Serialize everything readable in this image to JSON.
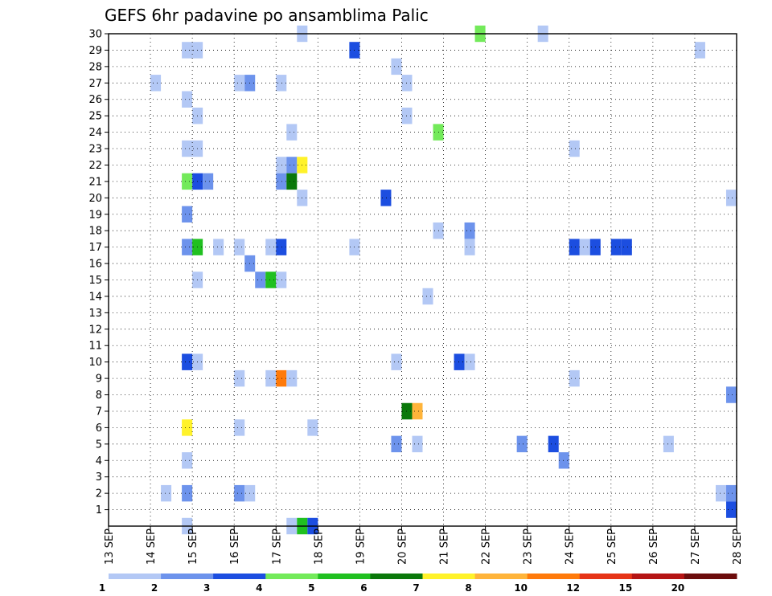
{
  "chart_data": {
    "type": "heatmap",
    "title": "GEFS 6hr padavine po ansamblima Palic",
    "x_tick_labels": [
      "13 SEP",
      "14 SEP",
      "15 SEP",
      "16 SEP",
      "17 SEP",
      "18 SEP",
      "19 SEP",
      "20 SEP",
      "21 SEP",
      "22 SEP",
      "23 SEP",
      "24 SEP",
      "25 SEP",
      "26 SEP",
      "27 SEP",
      "28 SEP"
    ],
    "x_range_steps": [
      0,
      60
    ],
    "y_tick_labels": [
      "1",
      "2",
      "3",
      "4",
      "5",
      "6",
      "7",
      "8",
      "9",
      "10",
      "11",
      "12",
      "13",
      "14",
      "15",
      "16",
      "17",
      "18",
      "19",
      "20",
      "21",
      "22",
      "23",
      "24",
      "25",
      "26",
      "27",
      "28",
      "29",
      "30"
    ],
    "y_range": [
      0,
      30
    ],
    "grid": true,
    "colorbar": {
      "position": "bottom",
      "labels": [
        "1",
        "2",
        "3",
        "4",
        "5",
        "6",
        "7",
        "8",
        "10",
        "12",
        "15",
        "20"
      ],
      "colors": [
        "#b3c8f5",
        "#6d93ec",
        "#1c4ee0",
        "#73ea5a",
        "#20c020",
        "#0a780a",
        "#fff22a",
        "#ffb43a",
        "#ff7a0a",
        "#e63417",
        "#b51414",
        "#6c0c0c"
      ]
    },
    "cells_note": "each cell: [member, time_step (6h steps from 13 SEP 00z), precip class index 0..11]",
    "cells": [
      [
        30,
        18,
        0
      ],
      [
        30,
        35,
        3
      ],
      [
        30,
        41,
        0
      ],
      [
        29,
        7,
        0
      ],
      [
        29,
        8,
        0
      ],
      [
        29,
        23,
        2
      ],
      [
        29,
        56,
        0
      ],
      [
        28,
        27,
        0
      ],
      [
        27,
        4,
        0
      ],
      [
        27,
        12,
        0
      ],
      [
        27,
        13,
        1
      ],
      [
        27,
        16,
        0
      ],
      [
        27,
        28,
        0
      ],
      [
        26,
        7,
        0
      ],
      [
        25,
        8,
        0
      ],
      [
        25,
        28,
        0
      ],
      [
        24,
        17,
        0
      ],
      [
        24,
        31,
        3
      ],
      [
        23,
        7,
        0
      ],
      [
        23,
        8,
        0
      ],
      [
        23,
        44,
        0
      ],
      [
        22,
        16,
        0
      ],
      [
        22,
        17,
        1
      ],
      [
        22,
        18,
        6
      ],
      [
        21,
        7,
        3
      ],
      [
        21,
        8,
        2
      ],
      [
        21,
        9,
        1
      ],
      [
        21,
        16,
        1
      ],
      [
        21,
        17,
        5
      ],
      [
        20,
        18,
        0
      ],
      [
        20,
        26,
        2
      ],
      [
        20,
        59,
        0
      ],
      [
        19,
        7,
        1
      ],
      [
        18,
        31,
        0
      ],
      [
        18,
        34,
        1
      ],
      [
        17,
        7,
        1
      ],
      [
        17,
        8,
        4
      ],
      [
        17,
        10,
        0
      ],
      [
        17,
        12,
        0
      ],
      [
        17,
        15,
        0
      ],
      [
        17,
        16,
        2
      ],
      [
        17,
        23,
        0
      ],
      [
        17,
        34,
        0
      ],
      [
        17,
        44,
        2
      ],
      [
        17,
        45,
        0
      ],
      [
        17,
        46,
        2
      ],
      [
        17,
        48,
        2
      ],
      [
        17,
        49,
        2
      ],
      [
        16,
        13,
        1
      ],
      [
        15,
        8,
        0
      ],
      [
        15,
        14,
        1
      ],
      [
        15,
        15,
        4
      ],
      [
        15,
        16,
        0
      ],
      [
        14,
        30,
        0
      ],
      [
        10,
        7,
        2
      ],
      [
        10,
        8,
        0
      ],
      [
        10,
        27,
        0
      ],
      [
        10,
        33,
        2
      ],
      [
        10,
        34,
        0
      ],
      [
        9,
        12,
        0
      ],
      [
        9,
        15,
        0
      ],
      [
        9,
        16,
        8
      ],
      [
        9,
        17,
        0
      ],
      [
        9,
        44,
        0
      ],
      [
        8,
        59,
        1
      ],
      [
        7,
        28,
        5
      ],
      [
        7,
        29,
        7
      ],
      [
        6,
        7,
        6
      ],
      [
        6,
        12,
        0
      ],
      [
        6,
        19,
        0
      ],
      [
        5,
        27,
        1
      ],
      [
        5,
        29,
        0
      ],
      [
        5,
        39,
        1
      ],
      [
        5,
        42,
        2
      ],
      [
        5,
        53,
        0
      ],
      [
        4,
        7,
        0
      ],
      [
        4,
        43,
        1
      ],
      [
        2,
        5,
        0
      ],
      [
        2,
        7,
        1
      ],
      [
        2,
        12,
        1
      ],
      [
        2,
        13,
        0
      ],
      [
        2,
        59,
        1
      ],
      [
        2,
        58,
        0
      ],
      [
        1,
        59,
        2
      ],
      [
        0,
        7,
        0
      ],
      [
        0,
        17,
        0
      ],
      [
        0,
        18,
        4
      ],
      [
        0,
        19,
        2
      ]
    ]
  }
}
